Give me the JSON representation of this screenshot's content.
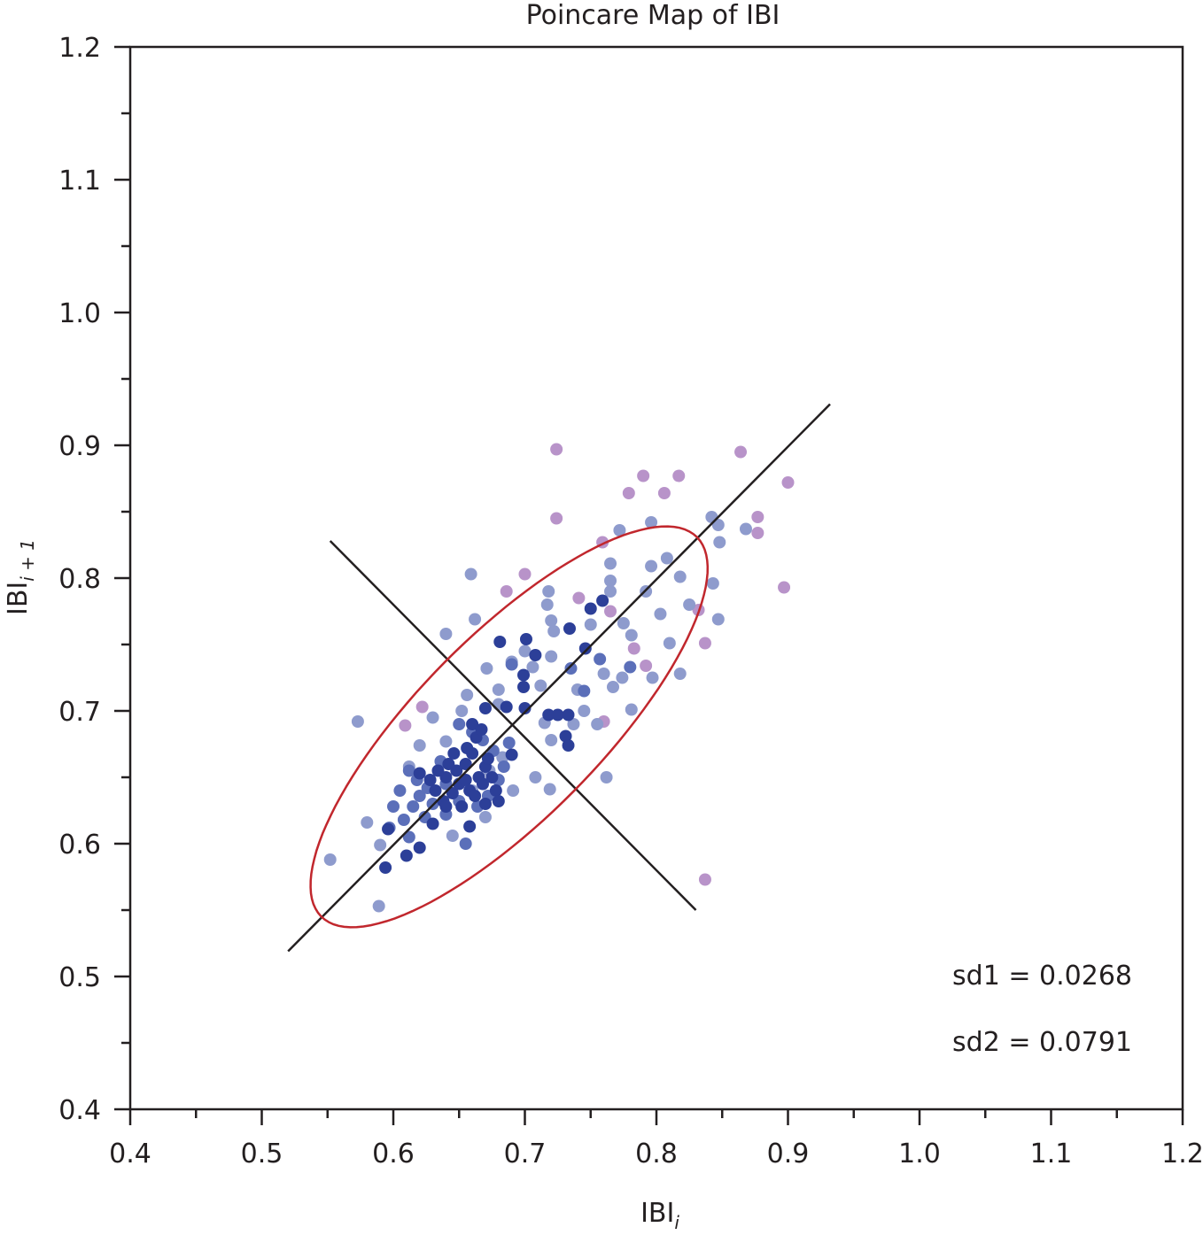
{
  "chart_data": {
    "type": "scatter",
    "title": "Poincare Map of IBI",
    "xlabel": "IBI",
    "xlabel_sub": "i",
    "ylabel": "IBI",
    "ylabel_sub": "i + 1",
    "xlim": [
      0.4,
      1.2
    ],
    "ylim": [
      0.4,
      1.2
    ],
    "xticks": [
      "0.4",
      "0.5",
      "0.6",
      "0.7",
      "0.8",
      "0.9",
      "1.0",
      "1.1",
      "1.2"
    ],
    "yticks": [
      "0.4",
      "0.5",
      "0.6",
      "0.7",
      "0.8",
      "0.9",
      "1.0",
      "1.1",
      "1.2"
    ],
    "grid": false,
    "annotations": [
      "sd1 = 0.0268",
      "sd2 = 0.0791"
    ],
    "sd1": 0.0268,
    "sd2": 0.0791,
    "colors": {
      "dark": "#2c3f98",
      "medium": "#5b6fb9",
      "light": "#8e9bcd",
      "purple": "#b893c9",
      "ellipse": "#c1272d",
      "line": "#231f20"
    },
    "identity_line": [
      [
        0.52,
        0.519
      ],
      [
        0.932,
        0.931
      ]
    ],
    "perpendicular_line": [
      [
        0.552,
        0.828
      ],
      [
        0.83,
        0.55
      ]
    ],
    "ellipse": {
      "center": [
        0.688,
        0.688
      ],
      "semi_major": 0.202,
      "semi_minor": 0.069,
      "angle_deg": 45
    },
    "points": [
      [
        "p",
        0.724,
        0.897
      ],
      [
        "p",
        0.864,
        0.895
      ],
      [
        "p",
        0.79,
        0.877
      ],
      [
        "p",
        0.817,
        0.877
      ],
      [
        "p",
        0.9,
        0.872
      ],
      [
        "p",
        0.779,
        0.864
      ],
      [
        "p",
        0.806,
        0.864
      ],
      [
        "p",
        0.724,
        0.845
      ],
      [
        "p",
        0.877,
        0.846
      ],
      [
        "p",
        0.877,
        0.834
      ],
      [
        "p",
        0.759,
        0.827
      ],
      [
        "p",
        0.7,
        0.803
      ],
      [
        "p",
        0.686,
        0.79
      ],
      [
        "p",
        0.897,
        0.793
      ],
      [
        "p",
        0.741,
        0.785
      ],
      [
        "p",
        0.765,
        0.775
      ],
      [
        "p",
        0.832,
        0.776
      ],
      [
        "p",
        0.837,
        0.751
      ],
      [
        "p",
        0.783,
        0.747
      ],
      [
        "p",
        0.792,
        0.734
      ],
      [
        "p",
        0.622,
        0.703
      ],
      [
        "p",
        0.609,
        0.689
      ],
      [
        "p",
        0.76,
        0.692
      ],
      [
        "p",
        0.837,
        0.573
      ],
      [
        "l",
        0.573,
        0.692
      ],
      [
        "l",
        0.552,
        0.588
      ],
      [
        "l",
        0.589,
        0.553
      ],
      [
        "l",
        0.659,
        0.803
      ],
      [
        "l",
        0.64,
        0.758
      ],
      [
        "l",
        0.662,
        0.769
      ],
      [
        "l",
        0.796,
        0.842
      ],
      [
        "l",
        0.842,
        0.846
      ],
      [
        "l",
        0.847,
        0.84
      ],
      [
        "l",
        0.868,
        0.837
      ],
      [
        "l",
        0.772,
        0.836
      ],
      [
        "l",
        0.848,
        0.827
      ],
      [
        "l",
        0.808,
        0.815
      ],
      [
        "l",
        0.765,
        0.811
      ],
      [
        "l",
        0.796,
        0.809
      ],
      [
        "l",
        0.818,
        0.801
      ],
      [
        "l",
        0.843,
        0.796
      ],
      [
        "l",
        0.765,
        0.798
      ],
      [
        "l",
        0.718,
        0.79
      ],
      [
        "l",
        0.717,
        0.78
      ],
      [
        "l",
        0.765,
        0.79
      ],
      [
        "l",
        0.792,
        0.79
      ],
      [
        "l",
        0.847,
        0.769
      ],
      [
        "l",
        0.803,
        0.773
      ],
      [
        "l",
        0.825,
        0.78
      ],
      [
        "l",
        0.72,
        0.768
      ],
      [
        "l",
        0.775,
        0.766
      ],
      [
        "l",
        0.75,
        0.765
      ],
      [
        "l",
        0.722,
        0.76
      ],
      [
        "l",
        0.781,
        0.757
      ],
      [
        "l",
        0.81,
        0.751
      ],
      [
        "l",
        0.7,
        0.745
      ],
      [
        "l",
        0.69,
        0.737
      ],
      [
        "l",
        0.72,
        0.741
      ],
      [
        "l",
        0.671,
        0.732
      ],
      [
        "l",
        0.706,
        0.733
      ],
      [
        "l",
        0.76,
        0.728
      ],
      [
        "l",
        0.818,
        0.728
      ],
      [
        "l",
        0.797,
        0.725
      ],
      [
        "l",
        0.774,
        0.725
      ],
      [
        "l",
        0.712,
        0.719
      ],
      [
        "l",
        0.68,
        0.716
      ],
      [
        "l",
        0.656,
        0.712
      ],
      [
        "l",
        0.74,
        0.716
      ],
      [
        "l",
        0.767,
        0.718
      ],
      [
        "l",
        0.745,
        0.7
      ],
      [
        "l",
        0.781,
        0.701
      ],
      [
        "l",
        0.715,
        0.691
      ],
      [
        "l",
        0.68,
        0.705
      ],
      [
        "l",
        0.72,
        0.678
      ],
      [
        "l",
        0.762,
        0.65
      ],
      [
        "l",
        0.719,
        0.641
      ],
      [
        "l",
        0.708,
        0.65
      ],
      [
        "l",
        0.691,
        0.64
      ],
      [
        "l",
        0.737,
        0.69
      ],
      [
        "l",
        0.755,
        0.69
      ],
      [
        "l",
        0.67,
        0.62
      ],
      [
        "l",
        0.645,
        0.606
      ],
      [
        "l",
        0.59,
        0.599
      ],
      [
        "l",
        0.58,
        0.616
      ],
      [
        "l",
        0.62,
        0.674
      ],
      [
        "l",
        0.64,
        0.677
      ],
      [
        "l",
        0.652,
        0.7
      ],
      [
        "l",
        0.63,
        0.695
      ],
      [
        "l",
        0.683,
        0.665
      ],
      [
        "l",
        0.673,
        0.655
      ],
      [
        "l",
        0.612,
        0.658
      ],
      [
        "l",
        0.66,
        0.64
      ],
      [
        "m",
        0.612,
        0.655
      ],
      [
        "m",
        0.618,
        0.648
      ],
      [
        "m",
        0.605,
        0.64
      ],
      [
        "m",
        0.62,
        0.636
      ],
      [
        "m",
        0.615,
        0.628
      ],
      [
        "m",
        0.626,
        0.642
      ],
      [
        "m",
        0.63,
        0.63
      ],
      [
        "m",
        0.6,
        0.628
      ],
      [
        "m",
        0.608,
        0.618
      ],
      [
        "m",
        0.597,
        0.612
      ],
      [
        "m",
        0.612,
        0.605
      ],
      [
        "m",
        0.624,
        0.62
      ],
      [
        "m",
        0.64,
        0.622
      ],
      [
        "m",
        0.65,
        0.632
      ],
      [
        "m",
        0.664,
        0.628
      ],
      [
        "m",
        0.672,
        0.636
      ],
      [
        "m",
        0.68,
        0.648
      ],
      [
        "m",
        0.684,
        0.658
      ],
      [
        "m",
        0.676,
        0.67
      ],
      [
        "m",
        0.668,
        0.678
      ],
      [
        "m",
        0.66,
        0.684
      ],
      [
        "m",
        0.688,
        0.676
      ],
      [
        "m",
        0.65,
        0.69
      ],
      [
        "m",
        0.64,
        0.645
      ],
      [
        "m",
        0.636,
        0.662
      ],
      [
        "m",
        0.655,
        0.6
      ],
      [
        "m",
        0.745,
        0.715
      ],
      [
        "m",
        0.735,
        0.732
      ],
      [
        "m",
        0.78,
        0.733
      ],
      [
        "m",
        0.757,
        0.739
      ],
      [
        "m",
        0.69,
        0.735
      ],
      [
        "d",
        0.681,
        0.752
      ],
      [
        "d",
        0.701,
        0.754
      ],
      [
        "d",
        0.708,
        0.742
      ],
      [
        "d",
        0.734,
        0.762
      ],
      [
        "d",
        0.759,
        0.783
      ],
      [
        "d",
        0.75,
        0.777
      ],
      [
        "d",
        0.699,
        0.727
      ],
      [
        "d",
        0.699,
        0.718
      ],
      [
        "d",
        0.746,
        0.747
      ],
      [
        "d",
        0.67,
        0.702
      ],
      [
        "d",
        0.686,
        0.703
      ],
      [
        "d",
        0.7,
        0.702
      ],
      [
        "d",
        0.718,
        0.697
      ],
      [
        "d",
        0.725,
        0.697
      ],
      [
        "d",
        0.733,
        0.697
      ],
      [
        "d",
        0.731,
        0.681
      ],
      [
        "d",
        0.733,
        0.674
      ],
      [
        "d",
        0.69,
        0.667
      ],
      [
        "d",
        0.594,
        0.582
      ],
      [
        "d",
        0.61,
        0.591
      ],
      [
        "d",
        0.62,
        0.597
      ],
      [
        "d",
        0.596,
        0.611
      ],
      [
        "d",
        0.658,
        0.613
      ],
      [
        "d",
        0.64,
        0.65
      ],
      [
        "d",
        0.648,
        0.655
      ],
      [
        "d",
        0.655,
        0.66
      ],
      [
        "d",
        0.66,
        0.668
      ],
      [
        "d",
        0.65,
        0.645
      ],
      [
        "d",
        0.658,
        0.64
      ],
      [
        "d",
        0.665,
        0.65
      ],
      [
        "d",
        0.67,
        0.658
      ],
      [
        "d",
        0.645,
        0.638
      ],
      [
        "d",
        0.638,
        0.632
      ],
      [
        "d",
        0.652,
        0.628
      ],
      [
        "d",
        0.662,
        0.636
      ],
      [
        "d",
        0.668,
        0.645
      ],
      [
        "d",
        0.675,
        0.65
      ],
      [
        "d",
        0.642,
        0.66
      ],
      [
        "d",
        0.634,
        0.655
      ],
      [
        "d",
        0.628,
        0.648
      ],
      [
        "d",
        0.656,
        0.672
      ],
      [
        "d",
        0.663,
        0.68
      ],
      [
        "d",
        0.672,
        0.664
      ],
      [
        "d",
        0.646,
        0.668
      ],
      [
        "d",
        0.632,
        0.64
      ],
      [
        "d",
        0.66,
        0.69
      ],
      [
        "d",
        0.667,
        0.686
      ],
      [
        "d",
        0.678,
        0.64
      ],
      [
        "d",
        0.63,
        0.615
      ],
      [
        "d",
        0.64,
        0.628
      ],
      [
        "d",
        0.62,
        0.653
      ],
      [
        "d",
        0.655,
        0.648
      ],
      [
        "d",
        0.67,
        0.63
      ],
      [
        "d",
        0.68,
        0.632
      ]
    ]
  }
}
